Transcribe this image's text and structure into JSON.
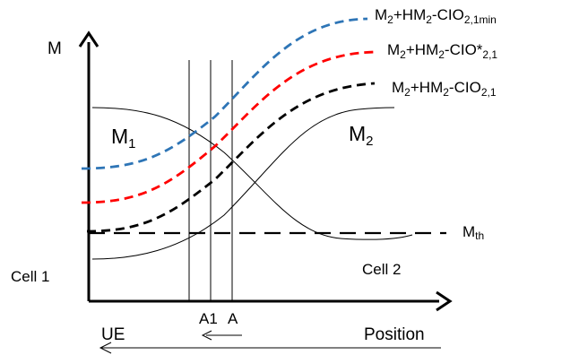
{
  "axes": {
    "y_label": "M",
    "x_label": "Position"
  },
  "curves": {
    "m1_label": "M",
    "m1_sub": "1",
    "m2_label": "M",
    "m2_sub": "2",
    "blue": {
      "color": "#2e75b6",
      "parts": [
        {
          "text": "M",
          "sub": false
        },
        {
          "text": "2",
          "sub": true
        },
        {
          "text": "+HM",
          "sub": false
        },
        {
          "text": "2",
          "sub": true
        },
        {
          "text": "-CIO",
          "sub": false
        },
        {
          "text": "2,1min",
          "sub": true
        }
      ]
    },
    "red": {
      "color": "#ff0000",
      "parts": [
        {
          "text": "M",
          "sub": false
        },
        {
          "text": "2",
          "sub": true
        },
        {
          "text": "+HM",
          "sub": false
        },
        {
          "text": "2",
          "sub": true
        },
        {
          "text": "-CIO*",
          "sub": false
        },
        {
          "text": "2,1",
          "sub": true
        }
      ]
    },
    "black": {
      "color": "#000000",
      "parts": [
        {
          "text": "M",
          "sub": false
        },
        {
          "text": "2",
          "sub": true
        },
        {
          "text": "+HM",
          "sub": false
        },
        {
          "text": "2",
          "sub": true
        },
        {
          "text": "-CIO",
          "sub": false
        },
        {
          "text": "2,1",
          "sub": true
        }
      ]
    }
  },
  "threshold": {
    "label": "M",
    "sub": "th"
  },
  "cells": {
    "cell1": "Cell 1",
    "cell2": "Cell 2"
  },
  "markers": {
    "a1": "A1",
    "a": "A"
  },
  "ue_label": "UE"
}
